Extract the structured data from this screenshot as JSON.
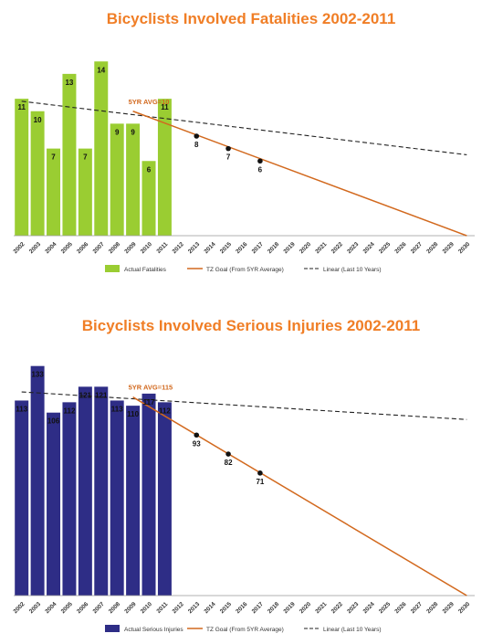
{
  "colors": {
    "title": "#f07e26",
    "fatal_bar": "#9acd32",
    "injury_bar": "#2e2d86",
    "goal": "#d2691e",
    "trend": "#222222"
  },
  "chart_data": [
    {
      "type": "bar",
      "title": "Bicyclists Involved Fatalities 2002-2011",
      "categories": [
        "2002",
        "2003",
        "2004",
        "2005",
        "2006",
        "2007",
        "2008",
        "2009",
        "2010",
        "2011",
        "2012",
        "2013",
        "2014",
        "2015",
        "2016",
        "2017",
        "2018",
        "2019",
        "2020",
        "2021",
        "2022",
        "2023",
        "2024",
        "2025",
        "2026",
        "2027",
        "2028",
        "2029",
        "2030"
      ],
      "series": [
        {
          "name": "Actual Fatalities",
          "kind": "bar",
          "x": [
            "2002",
            "2003",
            "2004",
            "2005",
            "2006",
            "2007",
            "2008",
            "2009",
            "2010",
            "2011"
          ],
          "values": [
            11,
            10,
            7,
            13,
            7,
            14,
            9,
            9,
            6,
            11
          ]
        },
        {
          "name": "TZ Goal (From 5YR Average)",
          "kind": "line",
          "x": [
            "2009",
            "2030"
          ],
          "values": [
            10,
            0
          ],
          "markers": [
            {
              "x": "2013",
              "y": 8
            },
            {
              "x": "2015",
              "y": 7
            },
            {
              "x": "2017",
              "y": 6
            }
          ]
        },
        {
          "name": "Linear (Last 10 Years)",
          "kind": "dashed-line",
          "x": [
            "2002",
            "2030"
          ],
          "values": [
            10.8,
            6.5
          ]
        }
      ],
      "annotation": "5YR AVG=10",
      "ylim": [
        0,
        16
      ],
      "xlabel": "",
      "ylabel": "",
      "legend": "bottom",
      "grid": false
    },
    {
      "type": "bar",
      "title": "Bicyclists Involved Serious Injuries 2002-2011",
      "categories": [
        "2002",
        "2003",
        "2004",
        "2005",
        "2006",
        "2007",
        "2008",
        "2009",
        "2010",
        "2011",
        "2012",
        "2013",
        "2014",
        "2015",
        "2016",
        "2017",
        "2018",
        "2019",
        "2020",
        "2021",
        "2022",
        "2023",
        "2024",
        "2025",
        "2026",
        "2027",
        "2028",
        "2029",
        "2030"
      ],
      "series": [
        {
          "name": "Actual Serious Injuries",
          "kind": "bar",
          "x": [
            "2002",
            "2003",
            "2004",
            "2005",
            "2006",
            "2007",
            "2008",
            "2009",
            "2010",
            "2011"
          ],
          "values": [
            113,
            133,
            106,
            112,
            121,
            121,
            113,
            110,
            117,
            112
          ]
        },
        {
          "name": "TZ Goal (From 5YR Average)",
          "kind": "line",
          "x": [
            "2009",
            "2030"
          ],
          "values": [
            115,
            0
          ],
          "markers": [
            {
              "x": "2013",
              "y": 93
            },
            {
              "x": "2015",
              "y": 82
            },
            {
              "x": "2017",
              "y": 71
            }
          ]
        },
        {
          "name": "Linear (Last 10 Years)",
          "kind": "dashed-line",
          "x": [
            "2002",
            "2030"
          ],
          "values": [
            118,
            102
          ]
        }
      ],
      "annotation": "5YR AVG=115",
      "ylim": [
        0,
        145
      ],
      "xlabel": "",
      "ylabel": "",
      "legend": "bottom",
      "grid": false
    }
  ]
}
